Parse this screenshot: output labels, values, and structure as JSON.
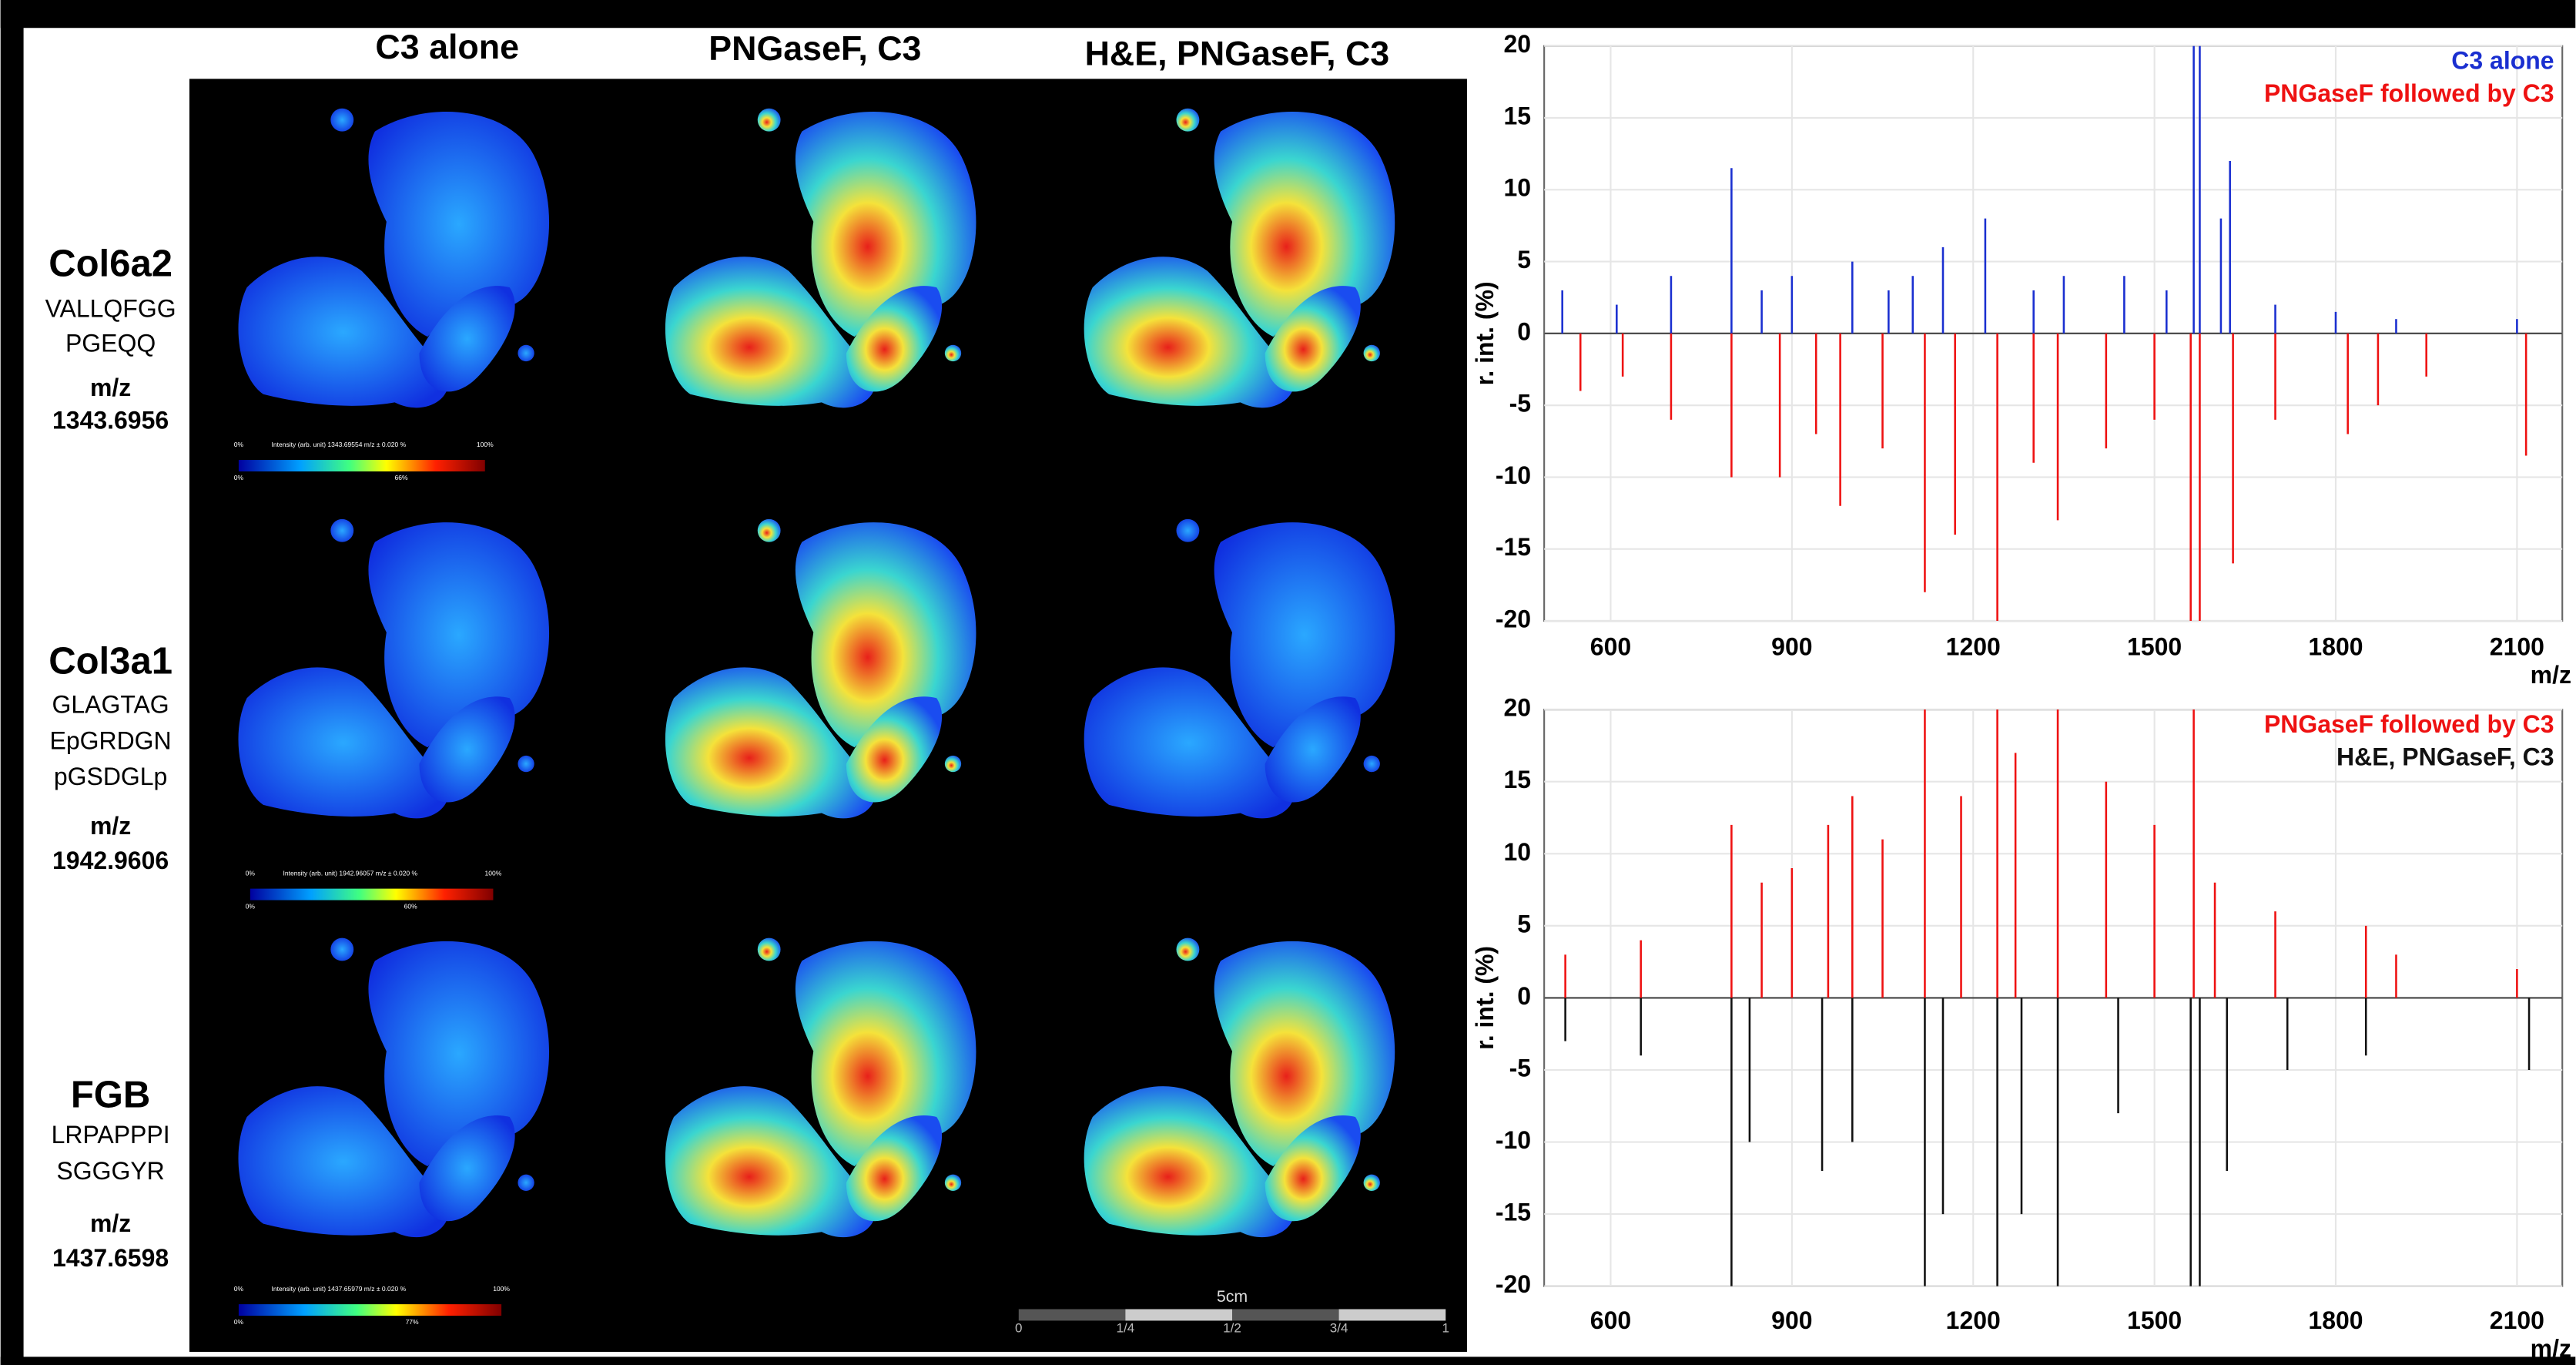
{
  "column_headers": [
    "C3 alone",
    "PNGaseF, C3",
    "H&E, PNGaseF, C3"
  ],
  "rows": [
    {
      "gene": "Col6a2",
      "peptide": [
        "VALLQFGG",
        "PGEQQ"
      ],
      "mz_label": "m/z",
      "mz": "1343.6956",
      "colorbar": {
        "caption": "Intensity (arb. unit) 1343.69554 m/z ± 0.020 %",
        "min": "0%",
        "max": "100%",
        "low": "0%",
        "high": "66%"
      }
    },
    {
      "gene": "Col3a1",
      "peptide": [
        "GLAGTAG",
        "EpGRDGN",
        "pGSDGLp"
      ],
      "mz_label": "m/z",
      "mz": "1942.9606",
      "colorbar": {
        "caption": "Intensity (arb. unit) 1942.96057 m/z ± 0.020 %",
        "min": "0%",
        "max": "100%",
        "low": "0%",
        "high": "60%"
      }
    },
    {
      "gene": "FGB",
      "peptide": [
        "LRPAPPPI",
        "SGGGYR"
      ],
      "mz_label": "m/z",
      "mz": "1437.6598",
      "colorbar": {
        "caption": "Intensity (arb. unit) 1437.65979 m/z ± 0.020 %",
        "min": "0%",
        "max": "100%",
        "low": "0%",
        "high": "77%"
      }
    }
  ],
  "scale_bar": {
    "label": "5cm",
    "ticks": [
      "0",
      "1/4",
      "1/2",
      "3/4",
      "1"
    ]
  },
  "chart_data": [
    {
      "type": "spectrum",
      "ylabel": "r. int. (%)",
      "xlabel": "m/z",
      "xlim": [
        490,
        2175
      ],
      "ylim": [
        -20,
        20
      ],
      "xticks": [
        600,
        900,
        1200,
        1500,
        1800,
        2100
      ],
      "yticks": [
        20,
        15,
        10,
        5,
        0,
        -5,
        -10,
        -15,
        -20
      ],
      "grid": true,
      "legend": "top-right",
      "series": [
        {
          "name": "C3 alone",
          "color": "#1a2fd0",
          "x": [
            520,
            610,
            700,
            800,
            850,
            900,
            1000,
            1060,
            1100,
            1150,
            1220,
            1300,
            1350,
            1450,
            1520,
            1565,
            1575,
            1610,
            1625,
            1700,
            1800,
            1900,
            2100
          ],
          "values": [
            3,
            2,
            4,
            11.5,
            3,
            4,
            5,
            3,
            4,
            6,
            8,
            3,
            4,
            4,
            3,
            20,
            20,
            8,
            12,
            2,
            1.5,
            1,
            1
          ]
        },
        {
          "name": "PNGaseF followed by C3",
          "color": "#ee1111",
          "x": [
            550,
            620,
            700,
            800,
            880,
            940,
            980,
            1050,
            1120,
            1170,
            1240,
            1300,
            1340,
            1420,
            1500,
            1560,
            1575,
            1630,
            1700,
            1820,
            1870,
            1950,
            2115
          ],
          "values": [
            -4,
            -3,
            -6,
            -10,
            -10,
            -7,
            -12,
            -8,
            -18,
            -14,
            -20,
            -9,
            -13,
            -8,
            -6,
            -20,
            -20,
            -16,
            -6,
            -7,
            -5,
            -3,
            -8.5
          ]
        }
      ]
    },
    {
      "type": "spectrum",
      "ylabel": "r. int. (%)",
      "xlabel": "m/z",
      "xlim": [
        490,
        2175
      ],
      "ylim": [
        -20,
        20
      ],
      "xticks": [
        600,
        900,
        1200,
        1500,
        1800,
        2100
      ],
      "yticks": [
        20,
        15,
        10,
        5,
        0,
        -5,
        -10,
        -15,
        -20
      ],
      "grid": true,
      "legend": "top-right",
      "series": [
        {
          "name": "PNGaseF followed by C3",
          "color": "#ee1111",
          "x": [
            525,
            650,
            800,
            850,
            900,
            960,
            1000,
            1050,
            1120,
            1180,
            1240,
            1270,
            1340,
            1420,
            1500,
            1565,
            1600,
            1700,
            1850,
            1900,
            2100
          ],
          "values": [
            3,
            4,
            12,
            8,
            9,
            12,
            14,
            11,
            20,
            14,
            20,
            17,
            20,
            15,
            12,
            20,
            8,
            6,
            5,
            3,
            2
          ]
        },
        {
          "name": "H&E, PNGaseF, C3",
          "color": "#111111",
          "x": [
            525,
            650,
            800,
            830,
            950,
            1000,
            1120,
            1150,
            1240,
            1280,
            1340,
            1440,
            1560,
            1575,
            1620,
            1720,
            1850,
            2120
          ],
          "values": [
            -3,
            -4,
            -20,
            -10,
            -12,
            -10,
            -20,
            -15,
            -20,
            -15,
            -20,
            -8,
            -20,
            -20,
            -12,
            -5,
            -4,
            -5
          ]
        }
      ]
    }
  ]
}
